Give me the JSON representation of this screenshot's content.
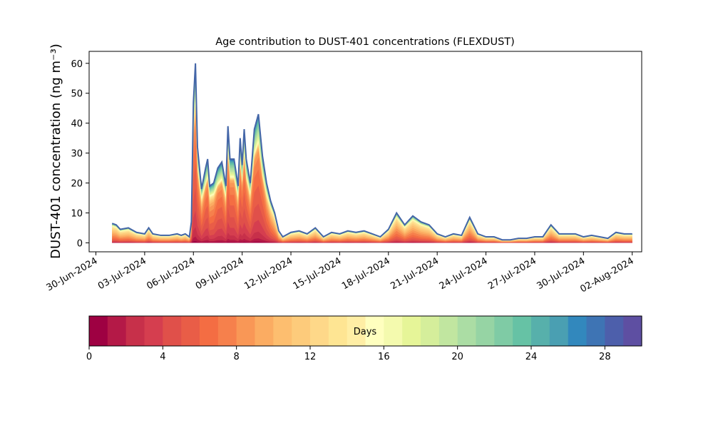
{
  "chart_data": {
    "type": "area",
    "title": "Age contribution to DUST-401 concentrations (FLEXDUST)",
    "ylabel": "DUST-401 concentration (ng m⁻³)",
    "xlabel": "",
    "ylim": [
      -3,
      64
    ],
    "yticks": [
      0,
      10,
      20,
      30,
      40,
      50,
      60
    ],
    "xlim": [
      "2024-06-29T14:00",
      "2024-08-02T14:00"
    ],
    "xticks": [
      "30-Jun-2024",
      "03-Jul-2024",
      "06-Jul-2024",
      "09-Jul-2024",
      "12-Jul-2024",
      "15-Jul-2024",
      "18-Jul-2024",
      "21-Jul-2024",
      "24-Jul-2024",
      "27-Jul-2024",
      "30-Jul-2024",
      "02-Aug-2024"
    ],
    "xtick_dates": [
      "2024-06-30",
      "2024-07-03",
      "2024-07-06",
      "2024-07-09",
      "2024-07-12",
      "2024-07-15",
      "2024-07-18",
      "2024-07-21",
      "2024-07-24",
      "2024-07-27",
      "2024-07-30",
      "2024-08-02"
    ],
    "grid": false,
    "stack_layers": 30,
    "total": {
      "dates": [
        "2024-07-01T00:00",
        "2024-07-01T06:00",
        "2024-07-01T12:00",
        "2024-07-02T00:00",
        "2024-07-02T12:00",
        "2024-07-03T00:00",
        "2024-07-03T06:00",
        "2024-07-03T12:00",
        "2024-07-04T00:00",
        "2024-07-04T12:00",
        "2024-07-05T00:00",
        "2024-07-05T06:00",
        "2024-07-05T12:00",
        "2024-07-05T18:00",
        "2024-07-05T21:00",
        "2024-07-06T00:00",
        "2024-07-06T03:00",
        "2024-07-06T06:00",
        "2024-07-06T12:00",
        "2024-07-06T18:00",
        "2024-07-06T21:00",
        "2024-07-07T00:00",
        "2024-07-07T06:00",
        "2024-07-07T12:00",
        "2024-07-07T18:00",
        "2024-07-08T00:00",
        "2024-07-08T03:00",
        "2024-07-08T06:00",
        "2024-07-08T12:00",
        "2024-07-08T18:00",
        "2024-07-08T21:00",
        "2024-07-09T00:00",
        "2024-07-09T03:00",
        "2024-07-09T06:00",
        "2024-07-09T12:00",
        "2024-07-09T18:00",
        "2024-07-10T00:00",
        "2024-07-10T06:00",
        "2024-07-10T12:00",
        "2024-07-10T18:00",
        "2024-07-11T00:00",
        "2024-07-11T06:00",
        "2024-07-11T12:00",
        "2024-07-12T00:00",
        "2024-07-12T12:00",
        "2024-07-13T00:00",
        "2024-07-13T12:00",
        "2024-07-14T00:00",
        "2024-07-14T12:00",
        "2024-07-15T00:00",
        "2024-07-15T12:00",
        "2024-07-16T00:00",
        "2024-07-16T12:00",
        "2024-07-17T00:00",
        "2024-07-17T12:00",
        "2024-07-18T00:00",
        "2024-07-18T12:00",
        "2024-07-19T00:00",
        "2024-07-19T12:00",
        "2024-07-20T00:00",
        "2024-07-20T12:00",
        "2024-07-21T00:00",
        "2024-07-21T12:00",
        "2024-07-22T00:00",
        "2024-07-22T12:00",
        "2024-07-23T00:00",
        "2024-07-23T12:00",
        "2024-07-24T00:00",
        "2024-07-24T12:00",
        "2024-07-25T00:00",
        "2024-07-25T12:00",
        "2024-07-26T00:00",
        "2024-07-26T12:00",
        "2024-07-27T00:00",
        "2024-07-27T12:00",
        "2024-07-28T00:00",
        "2024-07-28T12:00",
        "2024-07-29T00:00",
        "2024-07-29T12:00",
        "2024-07-30T00:00",
        "2024-07-30T12:00",
        "2024-07-31T00:00",
        "2024-07-31T12:00",
        "2024-08-01T00:00",
        "2024-08-01T12:00",
        "2024-08-02T00:00"
      ],
      "values": [
        6.5,
        6,
        4.5,
        5,
        3.5,
        3,
        5,
        3,
        2.5,
        2.5,
        3,
        2.5,
        3,
        2,
        7,
        47,
        60,
        32,
        18,
        25,
        28,
        19,
        20,
        25,
        27,
        19,
        39,
        28,
        28,
        19,
        35,
        26,
        38,
        28,
        20,
        38,
        43,
        29,
        20,
        14,
        10,
        4,
        2,
        3.5,
        4,
        3,
        5,
        2,
        3.5,
        3,
        4,
        3.5,
        4,
        3,
        2,
        4.5,
        10,
        6,
        9,
        7,
        6,
        3,
        2,
        3,
        2.5,
        8.5,
        3,
        2,
        2,
        1,
        1,
        1.5,
        1.5,
        2,
        2,
        6,
        3,
        3,
        3,
        2,
        2.5,
        2,
        1.5,
        3.5,
        3,
        3
      ]
    },
    "colorbar": {
      "label": "Days",
      "range": [
        0,
        30
      ],
      "ticks": [
        0,
        4,
        8,
        12,
        16,
        20,
        24,
        28
      ],
      "palette": "Spectral",
      "colors": [
        "#9e0142",
        "#b41947",
        "#c7304a",
        "#d53e4f",
        "#e0504a",
        "#e95d47",
        "#f46d43",
        "#f6804c",
        "#f99756",
        "#fbac62",
        "#fdbe6f",
        "#fdcb7b",
        "#fed889",
        "#fee593",
        "#ffeea5",
        "#ffffbf",
        "#f4faae",
        "#e6f598",
        "#d5ee9b",
        "#c1e6a0",
        "#abdda4",
        "#96d4a4",
        "#7fcba5",
        "#66c2a5",
        "#57b0ab",
        "#4a9fb2",
        "#3288bd",
        "#3e74b4",
        "#4d5fab",
        "#5e4fa2"
      ]
    }
  }
}
